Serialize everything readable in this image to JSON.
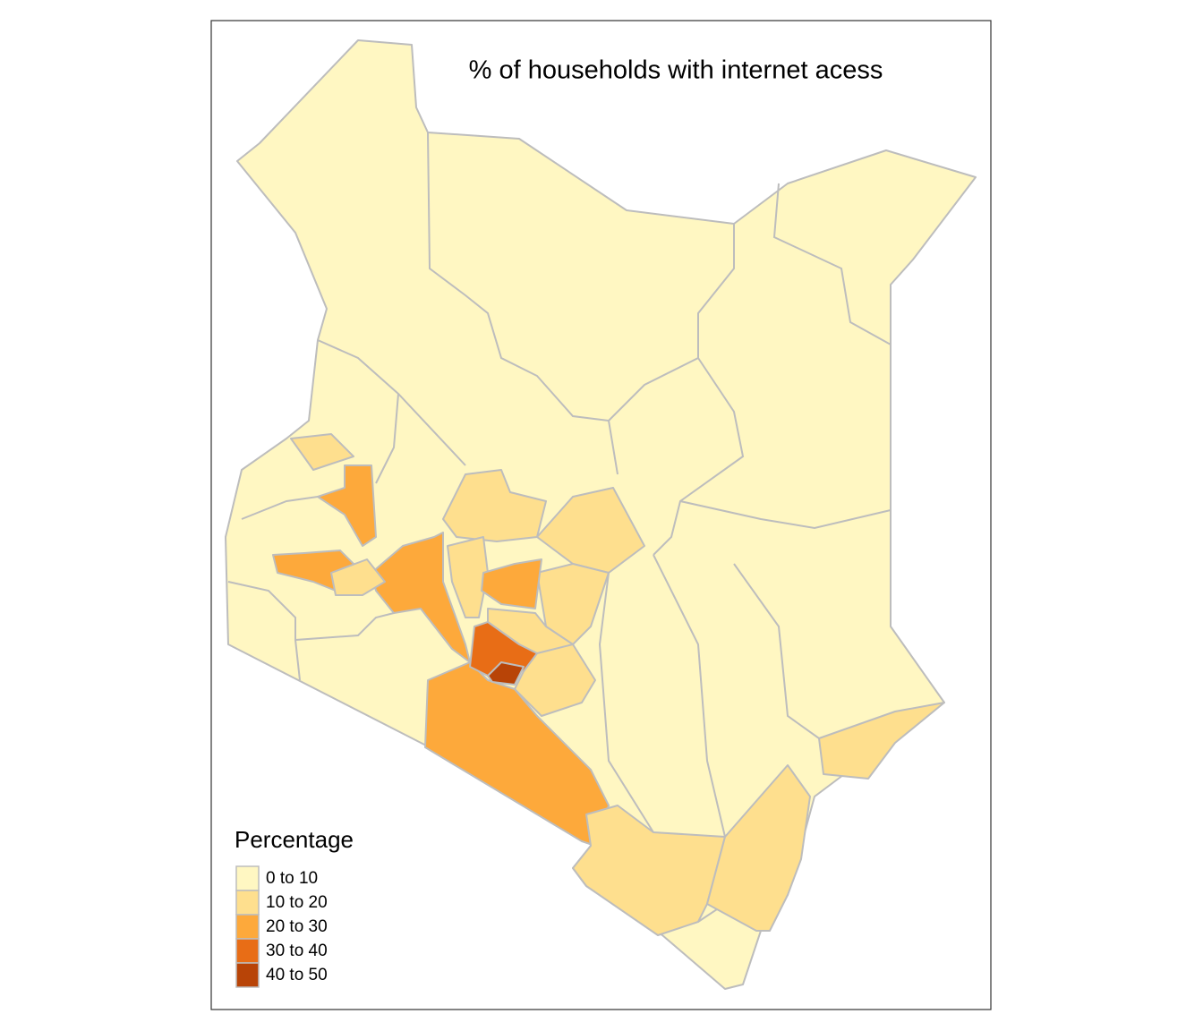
{
  "map": {
    "title": "% of households with internet acess",
    "legend": {
      "title": "Percentage",
      "items": [
        {
          "label": "0 to 10",
          "color": "#FFF7C2"
        },
        {
          "label": "10 to 20",
          "color": "#FEDF8E"
        },
        {
          "label": "20 to 30",
          "color": "#FDA93B"
        },
        {
          "label": "30 to 40",
          "color": "#E86D16"
        },
        {
          "label": "40 to 50",
          "color": "#B84407"
        }
      ]
    }
  }
}
